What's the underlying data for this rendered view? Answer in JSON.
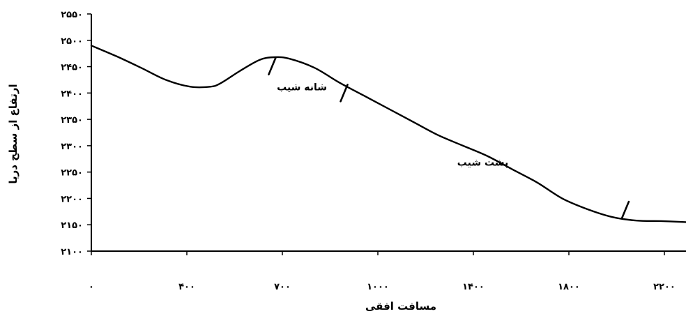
{
  "chart_data": {
    "type": "line",
    "xlabel": "مسافت افقی",
    "ylabel": "ارتفاع از سطح دریا",
    "x_ticks": [
      {
        "value": 0,
        "label": "۰"
      },
      {
        "value": 400,
        "label": "۴۰۰"
      },
      {
        "value": 700,
        "label": "۷۰۰"
      },
      {
        "value": 1000,
        "label": "۱۰۰۰"
      },
      {
        "value": 1400,
        "label": "۱۴۰۰"
      },
      {
        "value": 1800,
        "label": "۱۸۰۰"
      },
      {
        "value": 2200,
        "label": "۲۲۰۰"
      }
    ],
    "y_ticks": [
      {
        "value": 2100,
        "label": "۲۱۰۰"
      },
      {
        "value": 2150,
        "label": "۲۱۵۰"
      },
      {
        "value": 2200,
        "label": "۲۲۰۰"
      },
      {
        "value": 2250,
        "label": "۲۲۵۰"
      },
      {
        "value": 2300,
        "label": "۲۳۰۰"
      },
      {
        "value": 2350,
        "label": "۲۳۵۰"
      },
      {
        "value": 2400,
        "label": "۲۴۰۰"
      },
      {
        "value": 2450,
        "label": "۲۴۵۰"
      },
      {
        "value": 2500,
        "label": "۲۵۰۰"
      },
      {
        "value": 2550,
        "label": "۲۵۵۰"
      }
    ],
    "ylim": [
      2100,
      2550
    ],
    "grid": false,
    "series": [
      {
        "x": [
          0,
          100,
          200,
          300,
          400,
          480,
          520,
          600,
          680,
          740,
          800,
          900,
          1000,
          1100,
          1200,
          1300,
          1400,
          1500,
          1600,
          1700,
          1800,
          1900,
          2000,
          2100,
          2200,
          2300,
          2400
        ],
        "values": [
          2490,
          2470,
          2448,
          2425,
          2412,
          2412,
          2418,
          2442,
          2463,
          2468,
          2465,
          2448,
          2420,
          2395,
          2370,
          2345,
          2320,
          2300,
          2280,
          2255,
          2230,
          2200,
          2180,
          2165,
          2158,
          2157,
          2155
        ]
      }
    ],
    "annotations": [
      {
        "text": "شانه شیب",
        "x": 850,
        "y": 2405
      },
      {
        "text": "پشت شیب",
        "x": 1580,
        "y": 2262
      }
    ],
    "markers": [
      {
        "x": 730,
        "y": 2451
      },
      {
        "x": 1020,
        "y": 2400
      },
      {
        "x": 2155,
        "y": 2178
      }
    ]
  }
}
